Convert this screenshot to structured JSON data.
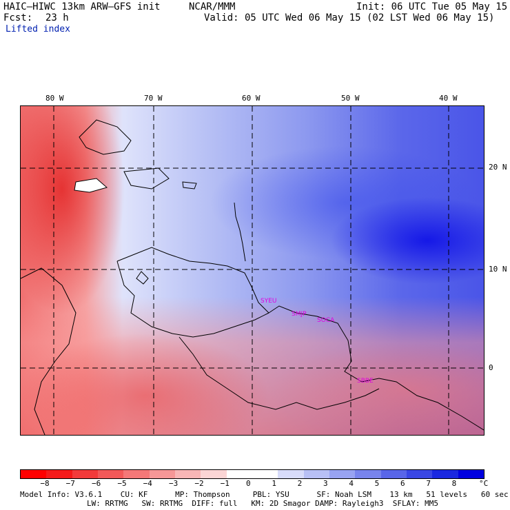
{
  "header": {
    "model_title": "HAIC–HIWC 13km ARW–GFS init",
    "org": "NCAR/MMM",
    "init": "Init: 06 UTC Tue 05 May 15",
    "fcst_label": "Fcst:",
    "fcst_value": "23 h",
    "valid": "Valid: 05 UTC Wed 06 May 15 (02 LST Wed 06 May 15)",
    "field": "Lifted index"
  },
  "longitudes": [
    "80 W",
    "70 W",
    "60 W",
    "50 W",
    "40 W"
  ],
  "latitudes": [
    "20 N",
    "10 N",
    "0"
  ],
  "stations": [
    "SYEU",
    "SMJP",
    "SOCA",
    "SBBE"
  ],
  "colorbar": {
    "unit": "°C",
    "labels": [
      "−8",
      "−7",
      "−6",
      "−5",
      "−4",
      "−3",
      "−2",
      "−1",
      "0",
      "1",
      "2",
      "3",
      "4",
      "5",
      "6",
      "7",
      "8"
    ],
    "colors": [
      "#ff0000",
      "#f51a1a",
      "#f23b3b",
      "#f25959",
      "#f47878",
      "#f69797",
      "#f8b6b6",
      "#fbd5d5",
      "#ffffff",
      "#ffffff",
      "#d8dcfa",
      "#b8c0f5",
      "#98a3f1",
      "#7884ec",
      "#5966e8",
      "#3a47e4",
      "#1a28e0",
      "#0000e0"
    ]
  },
  "footer": {
    "line1": "Model Info: V3.6.1    CU: KF      MP: Thompson     PBL: YSU      SF: Noah LSM    13 km   51 levels   60 sec",
    "line2": "LW: RRTMG   SW: RRTMG  DIFF: full   KM: 2D Smagor DAMP: Rayleigh3  SFLAY: MM5"
  }
}
